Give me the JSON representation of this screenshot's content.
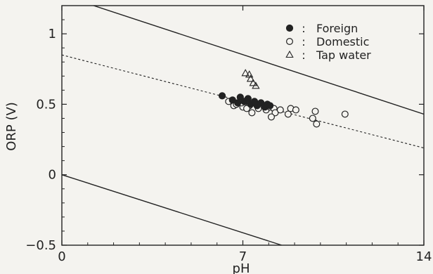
{
  "chart_data": {
    "type": "scatter",
    "xlabel": "pH",
    "ylabel": "ORP (V)",
    "xlim": [
      0,
      14
    ],
    "ylim": [
      -0.5,
      1.2
    ],
    "x_ticks": [
      {
        "value": 0,
        "label": "0"
      },
      {
        "value": 7,
        "label": "7"
      },
      {
        "value": 14,
        "label": "14"
      }
    ],
    "y_ticks": [
      {
        "value": -0.5,
        "label": "−0.5"
      },
      {
        "value": 0,
        "label": "0"
      },
      {
        "value": 0.5,
        "label": "0.5"
      },
      {
        "value": 1,
        "label": "1"
      }
    ],
    "grid": false,
    "legend_position": "top-right",
    "lines": [
      {
        "style": "solid",
        "points": [
          [
            0.9,
            1.22
          ],
          [
            14,
            0.43
          ]
        ]
      },
      {
        "style": "dashed",
        "points": [
          [
            0,
            0.85
          ],
          [
            14,
            0.19
          ]
        ]
      },
      {
        "style": "solid",
        "points": [
          [
            0,
            0.0
          ],
          [
            8.5,
            -0.5
          ]
        ]
      }
    ],
    "series": [
      {
        "name": "Foreign",
        "marker": "filled-circle",
        "points": [
          [
            6.2,
            0.56
          ],
          [
            6.6,
            0.53
          ],
          [
            6.8,
            0.51
          ],
          [
            6.9,
            0.55
          ],
          [
            7.05,
            0.52
          ],
          [
            7.2,
            0.54
          ],
          [
            7.3,
            0.5
          ],
          [
            7.45,
            0.52
          ],
          [
            7.55,
            0.49
          ],
          [
            7.7,
            0.51
          ],
          [
            7.85,
            0.48
          ],
          [
            7.95,
            0.5
          ],
          [
            8.05,
            0.49
          ]
        ]
      },
      {
        "name": "Domestic",
        "marker": "open-circle",
        "points": [
          [
            6.45,
            0.52
          ],
          [
            6.65,
            0.49
          ],
          [
            6.75,
            0.5
          ],
          [
            7.0,
            0.48
          ],
          [
            7.25,
            0.49
          ],
          [
            7.35,
            0.44
          ],
          [
            7.6,
            0.47
          ],
          [
            7.9,
            0.46
          ],
          [
            8.05,
            0.48
          ],
          [
            8.2,
            0.47
          ],
          [
            8.85,
            0.47
          ],
          [
            9.05,
            0.46
          ],
          [
            8.25,
            0.44
          ],
          [
            8.75,
            0.43
          ],
          [
            9.8,
            0.45
          ],
          [
            8.1,
            0.41
          ],
          [
            9.7,
            0.4
          ],
          [
            9.85,
            0.36
          ],
          [
            10.95,
            0.43
          ],
          [
            8.45,
            0.46
          ],
          [
            7.15,
            0.47
          ],
          [
            6.95,
            0.51
          ]
        ]
      },
      {
        "name": "Tap water",
        "marker": "open-triangle",
        "points": [
          [
            7.1,
            0.72
          ],
          [
            7.25,
            0.71
          ],
          [
            7.3,
            0.68
          ],
          [
            7.4,
            0.65
          ],
          [
            7.5,
            0.63
          ]
        ]
      }
    ],
    "legend": [
      {
        "marker": "filled-circle",
        "sep": ":",
        "label": "Foreign"
      },
      {
        "marker": "open-circle",
        "sep": ":",
        "label": "Domestic"
      },
      {
        "marker": "open-triangle",
        "sep": ":",
        "label": "Tap water"
      }
    ]
  }
}
